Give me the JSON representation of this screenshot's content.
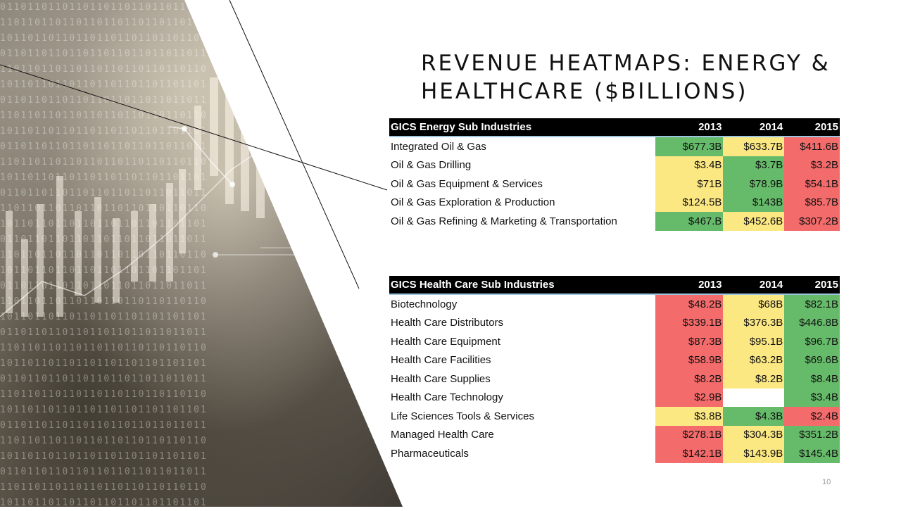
{
  "slide": {
    "title": "REVENUE HEATMAPS: ENERGY & HEALTHCARE ($BILLIONS)",
    "page_number": "10"
  },
  "colors": {
    "green": "#66bb6a",
    "yellow": "#fce883",
    "red": "#f36b6b"
  },
  "energy": {
    "header": "GICS Energy Sub Industries",
    "years": [
      "2013",
      "2014",
      "2015"
    ],
    "rows": [
      {
        "name": "Integrated Oil & Gas",
        "values": [
          "$677.3B",
          "$633.7B",
          "$411.6B"
        ]
      },
      {
        "name": "Oil & Gas Drilling",
        "values": [
          "$3.4B",
          "$3.7B",
          "$3.2B"
        ]
      },
      {
        "name": "Oil & Gas Equipment & Services",
        "values": [
          "$71B",
          "$78.9B",
          "$54.1B"
        ]
      },
      {
        "name": "Oil & Gas Exploration & Production",
        "values": [
          "$124.5B",
          "$143B",
          "$85.7B"
        ]
      },
      {
        "name": "Oil & Gas Refining & Marketing & Transportation",
        "values": [
          "$467.B",
          "$452.6B",
          "$307.2B"
        ]
      }
    ]
  },
  "healthcare": {
    "header": "GICS Health Care Sub Industries",
    "years": [
      "2013",
      "2014",
      "2015"
    ],
    "rows": [
      {
        "name": "Biotechnology",
        "values": [
          "$48.2B",
          "$68B",
          "$82.1B"
        ]
      },
      {
        "name": "Health Care Distributors",
        "values": [
          "$339.1B",
          "$376.3B",
          "$446.8B"
        ]
      },
      {
        "name": "Health Care Equipment",
        "values": [
          "$87.3B",
          "$95.1B",
          "$96.7B"
        ]
      },
      {
        "name": "Health Care Facilities",
        "values": [
          "$58.9B",
          "$63.2B",
          "$69.6B"
        ]
      },
      {
        "name": "Health Care Supplies",
        "values": [
          "$8.2B",
          "$8.2B",
          "$8.4B"
        ]
      },
      {
        "name": "Health Care Technology",
        "values": [
          "$2.9B",
          "",
          "$3.4B"
        ]
      },
      {
        "name": "Life Sciences Tools & Services",
        "values": [
          "$3.8B",
          "$4.3B",
          "$2.4B"
        ]
      },
      {
        "name": "Managed Health Care",
        "values": [
          "$278.1B",
          "$304.3B",
          "$351.2B"
        ]
      },
      {
        "name": "Pharmaceuticals",
        "values": [
          "$142.1B",
          "$143.9B",
          "$145.4B"
        ]
      }
    ]
  }
}
